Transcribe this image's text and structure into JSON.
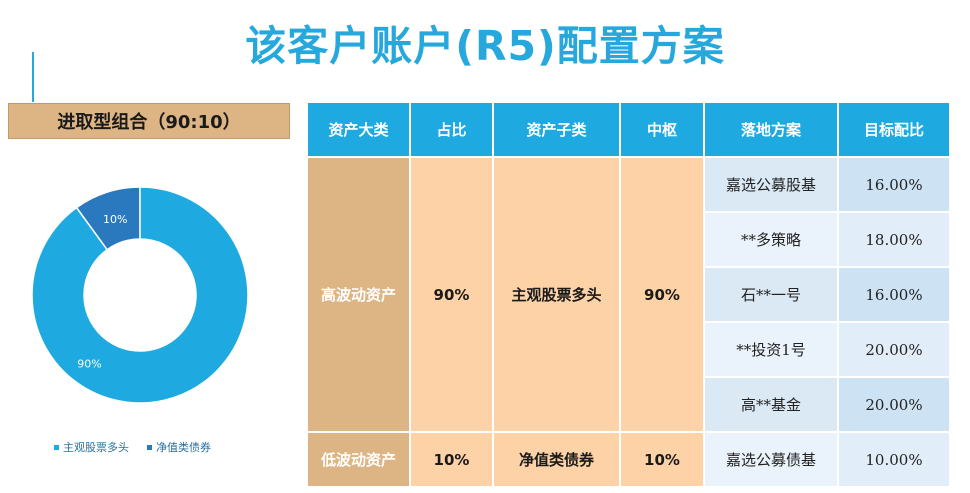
{
  "page": {
    "title": "该客户账户(R5)配置方案"
  },
  "portfolio": {
    "label": "进取型组合（90:10）"
  },
  "chart_data": {
    "type": "pie",
    "donut": true,
    "title": "",
    "categories": [
      "主观股票多头",
      "净值类债券"
    ],
    "values": [
      90,
      10
    ],
    "value_labels": [
      "90%",
      "10%"
    ],
    "colors": [
      "#1eaae0",
      "#2a79be"
    ],
    "legend": {
      "position": "bottom",
      "entries": [
        "主观股票多头",
        "净值类债券"
      ]
    }
  },
  "table": {
    "headers": [
      "资产大类",
      "占比",
      "资产子类",
      "中枢",
      "落地方案",
      "目标配比"
    ],
    "groups": [
      {
        "category": "高波动资产",
        "ratio": "90%",
        "subclass": "主观股票多头",
        "center": "90%",
        "rows": [
          {
            "plan": "嘉选公募股基",
            "target": "16.00%"
          },
          {
            "plan": "**多策略",
            "target": "18.00%"
          },
          {
            "plan": "石**一号",
            "target": "16.00%"
          },
          {
            "plan": "**投资1号",
            "target": "20.00%"
          },
          {
            "plan": "高**基金",
            "target": "20.00%"
          }
        ]
      },
      {
        "category": "低波动资产",
        "ratio": "10%",
        "subclass": "净值类债券",
        "center": "10%",
        "rows": [
          {
            "plan": "嘉选公募债基",
            "target": "10.00%"
          }
        ]
      }
    ]
  }
}
